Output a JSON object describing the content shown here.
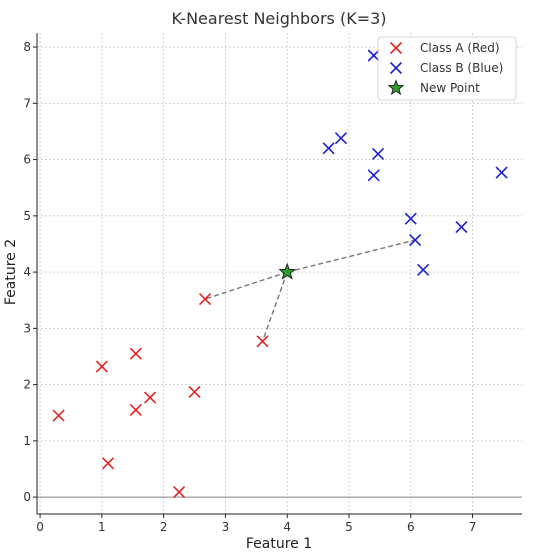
{
  "chart_data": {
    "type": "scatter",
    "title": "K-Nearest Neighbors (K=3)",
    "xlabel": "Feature 1",
    "ylabel": "Feature 2",
    "xlim": [
      -0.05,
      7.8
    ],
    "ylim": [
      -0.3,
      8.25
    ],
    "x_ticks": [
      0,
      1,
      2,
      3,
      4,
      5,
      6,
      7
    ],
    "y_ticks": [
      0,
      1,
      2,
      3,
      4,
      5,
      6,
      7,
      8
    ],
    "grid": true,
    "legend_position": "top-right",
    "series": [
      {
        "name": "Class A (Red)",
        "color": "#e02424",
        "marker": "x",
        "points": [
          {
            "x": 0.3,
            "y": 1.45
          },
          {
            "x": 1.0,
            "y": 2.32
          },
          {
            "x": 1.1,
            "y": 0.6
          },
          {
            "x": 1.55,
            "y": 2.55
          },
          {
            "x": 1.55,
            "y": 1.55
          },
          {
            "x": 1.78,
            "y": 1.77
          },
          {
            "x": 2.25,
            "y": 0.09
          },
          {
            "x": 2.5,
            "y": 1.87
          },
          {
            "x": 2.67,
            "y": 3.52
          },
          {
            "x": 3.6,
            "y": 2.77
          }
        ]
      },
      {
        "name": "Class B (Blue)",
        "color": "#1f1fd1",
        "marker": "x",
        "points": [
          {
            "x": 4.67,
            "y": 6.2
          },
          {
            "x": 4.87,
            "y": 6.38
          },
          {
            "x": 5.4,
            "y": 5.72
          },
          {
            "x": 5.47,
            "y": 6.1
          },
          {
            "x": 5.4,
            "y": 7.85
          },
          {
            "x": 6.0,
            "y": 4.95
          },
          {
            "x": 6.07,
            "y": 4.57
          },
          {
            "x": 6.2,
            "y": 4.04
          },
          {
            "x": 6.82,
            "y": 4.8
          },
          {
            "x": 7.47,
            "y": 5.77
          }
        ]
      },
      {
        "name": "New Point",
        "color": "#2ca02c",
        "marker": "star",
        "points": [
          {
            "x": 4.0,
            "y": 4.0
          }
        ]
      }
    ],
    "neighbor_lines": [
      {
        "from": {
          "x": 4.0,
          "y": 4.0
        },
        "to": {
          "x": 2.67,
          "y": 3.52
        }
      },
      {
        "from": {
          "x": 4.0,
          "y": 4.0
        },
        "to": {
          "x": 3.6,
          "y": 2.77
        }
      },
      {
        "from": {
          "x": 4.0,
          "y": 4.0
        },
        "to": {
          "x": 6.07,
          "y": 4.57
        }
      }
    ]
  }
}
